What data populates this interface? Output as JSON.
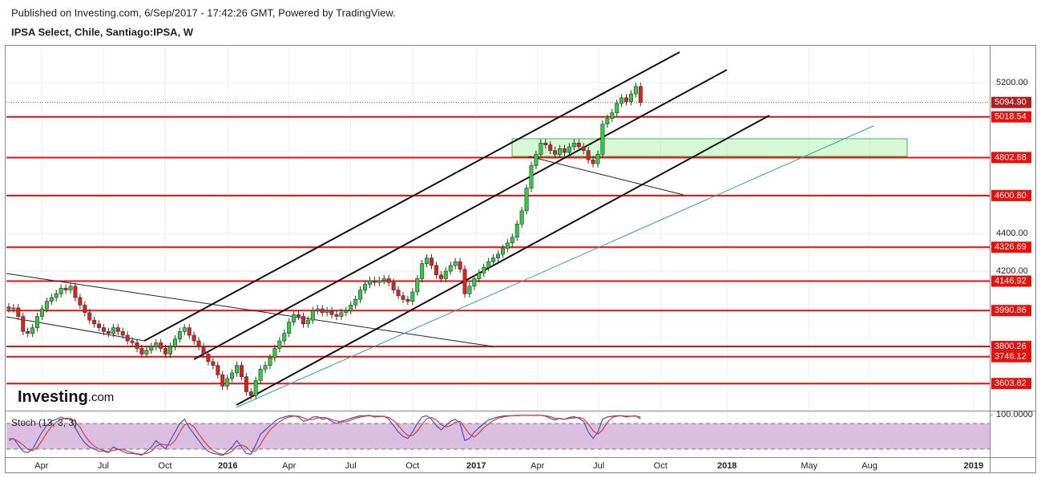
{
  "header": "Published on Investing.com, 6/Sep/2017 - 17:42:26 GMT, Powered by TradingView.",
  "logo": {
    "name": "Investing",
    "suffix": ".com"
  },
  "chart_data": [
    {
      "type": "candlestick",
      "title": "IPSA Select, Chile, Santiago:IPSA, W",
      "up_color": "#2ecc40",
      "down_color": "#e0211d",
      "xlim": [
        -0.5,
        206.5
      ],
      "xticks": [
        {
          "value": 6.9,
          "label": "Apr"
        },
        {
          "value": 19.9,
          "label": "Jul"
        },
        {
          "value": 32.9,
          "label": "Oct"
        },
        {
          "value": 46.1,
          "label": "2016"
        },
        {
          "value": 59.0,
          "label": "Apr"
        },
        {
          "value": 72.0,
          "label": "Jul"
        },
        {
          "value": 85.0,
          "label": "Oct"
        },
        {
          "value": 98.4,
          "label": "2017"
        },
        {
          "value": 111.3,
          "label": "Apr"
        },
        {
          "value": 124.2,
          "label": "Jul"
        },
        {
          "value": 137.2,
          "label": "Oct"
        },
        {
          "value": 151.2,
          "label": "2018"
        },
        {
          "value": 168.5,
          "label": "May"
        },
        {
          "value": 181.2,
          "label": "Aug"
        },
        {
          "value": 203.1,
          "label": "2019"
        }
      ],
      "ylim": [
        3460,
        5396
      ],
      "yticks": [
        {
          "value": 5200,
          "label": "5200.00"
        },
        {
          "value": 4400,
          "label": "4400.00"
        },
        {
          "value": 4200,
          "label": "4200.00"
        }
      ],
      "grid": true,
      "last_price": {
        "value": 5094.9,
        "label": "5094.90",
        "color": "#b71c1c"
      },
      "level_color": "#e8100c",
      "levels": [
        5018.54,
        4802.68,
        {
          "value": 4600.8,
          "label": "4600.80"
        },
        4326.69,
        4146.92,
        3990.86,
        3800.26,
        3746.12,
        3603.82
      ],
      "open": [
        4010,
        4000,
        4005,
        3960,
        3880,
        3870,
        3900,
        3960,
        4000,
        4040,
        4060,
        4080,
        4110,
        4100,
        4120,
        4060,
        4020,
        3980,
        3940,
        3920,
        3900,
        3880,
        3870,
        3900,
        3880,
        3860,
        3830,
        3820,
        3790,
        3760,
        3780,
        3800,
        3820,
        3790,
        3760,
        3800,
        3840,
        3880,
        3900,
        3860,
        3830,
        3800,
        3760,
        3720,
        3700,
        3650,
        3590,
        3630,
        3660,
        3700,
        3640,
        3560,
        3540,
        3620,
        3680,
        3700,
        3740,
        3790,
        3830,
        3870,
        3930,
        3970,
        3960,
        3920,
        3940,
        3990,
        4000,
        3980,
        3990,
        3970,
        3960,
        3980,
        3990,
        4020,
        4050,
        4100,
        4130,
        4150,
        4140,
        4150,
        4160,
        4140,
        4100,
        4070,
        4050,
        4040,
        4090,
        4160,
        4240,
        4270,
        4230,
        4180,
        4160,
        4200,
        4230,
        4250,
        4210,
        4080,
        4120,
        4160,
        4190,
        4220,
        4250,
        4270,
        4290,
        4320,
        4350,
        4380,
        4450,
        4520,
        4640,
        4760,
        4820,
        4880,
        4870,
        4840,
        4820,
        4850,
        4830,
        4860,
        4880,
        4860,
        4840,
        4790,
        4770,
        4820,
        4980,
        5010,
        5040,
        5090,
        5120,
        5100,
        5140,
        5180
      ],
      "high": [
        4030,
        4025,
        4025,
        3980,
        3900,
        3920,
        3980,
        4020,
        4060,
        4080,
        4100,
        4130,
        4130,
        4140,
        4140,
        4080,
        4040,
        4000,
        3960,
        3940,
        3920,
        3900,
        3920,
        3920,
        3900,
        3880,
        3850,
        3840,
        3810,
        3800,
        3820,
        3840,
        3840,
        3810,
        3820,
        3860,
        3900,
        3920,
        3920,
        3880,
        3850,
        3820,
        3780,
        3740,
        3720,
        3670,
        3650,
        3680,
        3720,
        3720,
        3660,
        3580,
        3640,
        3700,
        3720,
        3760,
        3810,
        3850,
        3890,
        3950,
        3990,
        3990,
        3980,
        3960,
        4010,
        4020,
        4020,
        4010,
        4010,
        3990,
        4000,
        4010,
        4040,
        4070,
        4120,
        4150,
        4170,
        4170,
        4170,
        4180,
        4180,
        4160,
        4120,
        4090,
        4070,
        4110,
        4180,
        4260,
        4290,
        4290,
        4250,
        4200,
        4220,
        4250,
        4270,
        4270,
        4230,
        4140,
        4180,
        4210,
        4240,
        4270,
        4290,
        4310,
        4340,
        4370,
        4400,
        4470,
        4540,
        4660,
        4780,
        4840,
        4900,
        4900,
        4890,
        4860,
        4870,
        4870,
        4880,
        4900,
        4900,
        4880,
        4860,
        4810,
        4840,
        5000,
        5030,
        5060,
        5110,
        5140,
        5140,
        5160,
        5200,
        5200
      ],
      "low": [
        3980,
        3980,
        3940,
        3860,
        3850,
        3850,
        3880,
        3940,
        3980,
        4020,
        4040,
        4060,
        4080,
        4080,
        4040,
        4000,
        3960,
        3920,
        3900,
        3880,
        3860,
        3850,
        3850,
        3860,
        3840,
        3810,
        3800,
        3770,
        3740,
        3740,
        3760,
        3780,
        3770,
        3740,
        3740,
        3780,
        3820,
        3860,
        3840,
        3810,
        3780,
        3740,
        3700,
        3680,
        3630,
        3570,
        3570,
        3610,
        3640,
        3620,
        3540,
        3520,
        3520,
        3600,
        3660,
        3680,
        3720,
        3770,
        3810,
        3850,
        3910,
        3940,
        3900,
        3900,
        3920,
        3970,
        3960,
        3960,
        3950,
        3940,
        3940,
        3960,
        3970,
        4000,
        4030,
        4080,
        4110,
        4120,
        4120,
        4130,
        4120,
        4080,
        4050,
        4030,
        4020,
        4020,
        4070,
        4140,
        4220,
        4210,
        4160,
        4140,
        4140,
        4180,
        4210,
        4190,
        4060,
        4060,
        4100,
        4140,
        4170,
        4200,
        4230,
        4250,
        4270,
        4300,
        4330,
        4360,
        4430,
        4500,
        4620,
        4740,
        4800,
        4850,
        4820,
        4800,
        4800,
        4810,
        4810,
        4840,
        4840,
        4820,
        4770,
        4750,
        4750,
        4800,
        4960,
        4990,
        5020,
        5070,
        5080,
        5080,
        5120,
        5075
      ],
      "close": [
        4000,
        4005,
        3960,
        3880,
        3870,
        3900,
        3960,
        4000,
        4040,
        4060,
        4080,
        4110,
        4100,
        4120,
        4060,
        4020,
        3980,
        3940,
        3920,
        3900,
        3880,
        3870,
        3900,
        3880,
        3860,
        3830,
        3820,
        3790,
        3760,
        3780,
        3800,
        3820,
        3790,
        3760,
        3800,
        3840,
        3880,
        3900,
        3860,
        3830,
        3800,
        3760,
        3720,
        3700,
        3650,
        3590,
        3630,
        3660,
        3700,
        3640,
        3560,
        3540,
        3620,
        3680,
        3700,
        3740,
        3790,
        3830,
        3870,
        3930,
        3970,
        3960,
        3920,
        3940,
        3990,
        4000,
        3980,
        3990,
        3970,
        3960,
        3980,
        3990,
        4020,
        4050,
        4100,
        4130,
        4150,
        4140,
        4150,
        4160,
        4140,
        4100,
        4070,
        4050,
        4040,
        4090,
        4160,
        4240,
        4270,
        4230,
        4180,
        4160,
        4200,
        4230,
        4250,
        4210,
        4080,
        4120,
        4160,
        4190,
        4220,
        4250,
        4270,
        4290,
        4320,
        4350,
        4380,
        4450,
        4520,
        4640,
        4760,
        4820,
        4880,
        4870,
        4840,
        4820,
        4850,
        4830,
        4860,
        4880,
        4860,
        4840,
        4790,
        4770,
        4820,
        4980,
        5010,
        5040,
        5090,
        5120,
        5100,
        5140,
        5180,
        5095
      ]
    },
    {
      "type": "line",
      "title": "Stoch (13, 3, 3)",
      "xlim": [
        -0.5,
        206.5
      ],
      "ylim": [
        5,
        110
      ],
      "yticks": [
        {
          "value": 100,
          "label": "100.0000"
        }
      ],
      "band": [
        20,
        80
      ],
      "band_color": "#dcbfe0",
      "series": [
        {
          "color": "#3f51d8",
          "values": [
            40,
            45,
            30,
            15,
            12,
            20,
            40,
            60,
            75,
            85,
            90,
            95,
            90,
            92,
            70,
            50,
            35,
            25,
            20,
            15,
            15,
            12,
            25,
            20,
            15,
            10,
            10,
            8,
            6,
            15,
            25,
            40,
            30,
            20,
            40,
            60,
            80,
            90,
            70,
            55,
            40,
            25,
            15,
            10,
            8,
            5,
            15,
            25,
            40,
            25,
            10,
            8,
            30,
            55,
            65,
            75,
            85,
            92,
            95,
            98,
            98,
            95,
            85,
            88,
            95,
            96,
            90,
            92,
            85,
            80,
            85,
            88,
            92,
            95,
            98,
            98,
            99,
            95,
            96,
            97,
            90,
            75,
            60,
            50,
            45,
            60,
            80,
            95,
            98,
            90,
            75,
            65,
            75,
            85,
            90,
            80,
            40,
            45,
            60,
            70,
            80,
            88,
            92,
            95,
            97,
            98,
            98,
            99,
            99,
            99,
            99,
            99,
            99,
            97,
            92,
            88,
            92,
            90,
            94,
            96,
            92,
            85,
            60,
            45,
            60,
            90,
            95,
            97,
            98,
            98,
            95,
            97,
            98,
            90
          ]
        },
        {
          "color": "#e53935",
          "values": [
            45,
            44,
            38,
            30,
            19,
            16,
            24,
            40,
            58,
            73,
            83,
            90,
            92,
            92,
            84,
            71,
            52,
            37,
            27,
            20,
            17,
            14,
            17,
            19,
            20,
            15,
            12,
            9,
            8,
            10,
            15,
            27,
            32,
            30,
            30,
            40,
            60,
            77,
            80,
            72,
            55,
            40,
            27,
            17,
            11,
            8,
            9,
            15,
            27,
            30,
            25,
            14,
            16,
            31,
            50,
            65,
            75,
            84,
            91,
            95,
            97,
            97,
            93,
            89,
            89,
            93,
            94,
            93,
            89,
            86,
            83,
            84,
            88,
            92,
            95,
            97,
            98,
            97,
            97,
            96,
            94,
            87,
            75,
            62,
            52,
            52,
            62,
            78,
            91,
            94,
            88,
            77,
            72,
            75,
            83,
            85,
            70,
            55,
            48,
            58,
            70,
            79,
            87,
            92,
            95,
            97,
            98,
            98,
            99,
            99,
            99,
            99,
            99,
            98,
            96,
            92,
            91,
            90,
            92,
            93,
            94,
            91,
            79,
            63,
            55,
            65,
            82,
            94,
            97,
            98,
            97,
            97,
            97,
            95
          ]
        }
      ]
    }
  ]
}
